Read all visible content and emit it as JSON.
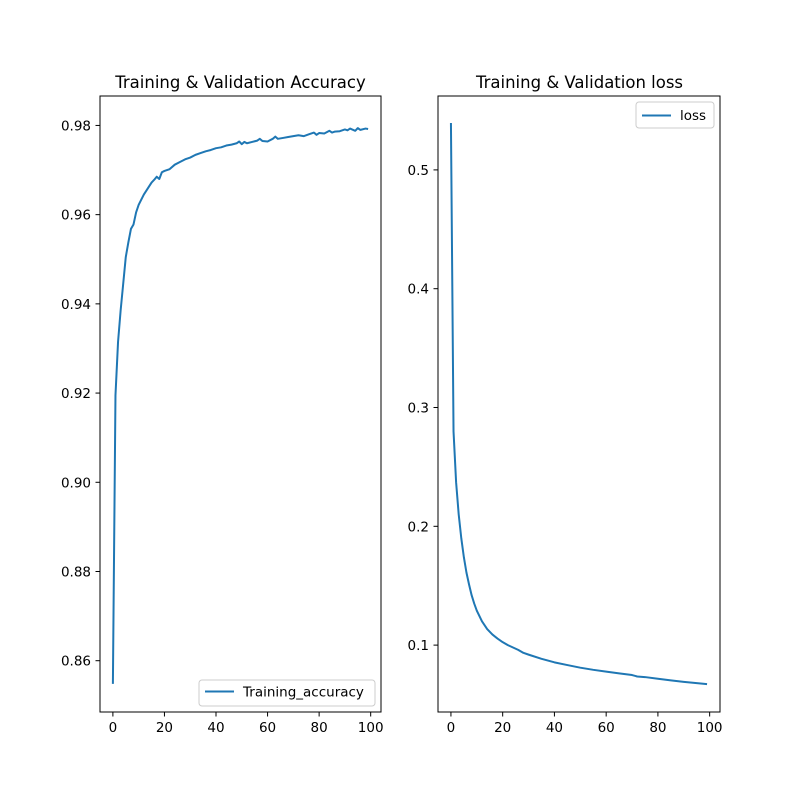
{
  "chart_data": [
    {
      "type": "line",
      "title": "Training & Validation Accuracy",
      "xlabel": "",
      "ylabel": "",
      "xlim": [
        -5,
        104
      ],
      "ylim": [
        0.8485,
        0.9866
      ],
      "xticks": [
        0,
        20,
        40,
        60,
        80,
        100
      ],
      "yticks": [
        0.86,
        0.88,
        0.9,
        0.92,
        0.94,
        0.96,
        0.98
      ],
      "ytick_labels": [
        "0.86",
        "0.88",
        "0.90",
        "0.92",
        "0.94",
        "0.96",
        "0.98"
      ],
      "grid": false,
      "legend_position": "lower-right",
      "color": "#1f77b4",
      "series": [
        {
          "name": "Training_accuracy",
          "x": [
            0,
            1,
            2,
            3,
            4,
            5,
            6,
            7,
            8,
            9,
            10,
            12,
            14,
            15,
            16,
            17,
            18,
            19,
            20,
            22,
            24,
            26,
            28,
            30,
            32,
            34,
            36,
            38,
            40,
            42,
            44,
            46,
            48,
            49,
            50,
            51,
            52,
            54,
            56,
            57,
            58,
            60,
            62,
            63,
            64,
            66,
            68,
            70,
            72,
            74,
            76,
            78,
            79,
            80,
            82,
            84,
            85,
            86,
            88,
            90,
            91,
            92,
            94,
            95,
            96,
            98,
            99
          ],
          "y": [
            0.8548,
            0.9195,
            0.9315,
            0.9385,
            0.9445,
            0.9505,
            0.9538,
            0.9568,
            0.9578,
            0.9605,
            0.9622,
            0.9645,
            0.9663,
            0.9672,
            0.9678,
            0.9685,
            0.968,
            0.9695,
            0.9698,
            0.9702,
            0.9712,
            0.9718,
            0.9724,
            0.9728,
            0.9734,
            0.9738,
            0.9742,
            0.9745,
            0.9749,
            0.9751,
            0.9755,
            0.9757,
            0.976,
            0.9764,
            0.9758,
            0.9763,
            0.976,
            0.9763,
            0.9766,
            0.977,
            0.9765,
            0.9764,
            0.977,
            0.9775,
            0.977,
            0.9772,
            0.9774,
            0.9776,
            0.9778,
            0.9776,
            0.978,
            0.9784,
            0.9779,
            0.9783,
            0.9782,
            0.9788,
            0.9784,
            0.9786,
            0.9787,
            0.9791,
            0.9789,
            0.9793,
            0.9788,
            0.9794,
            0.979,
            0.9793,
            0.9792
          ]
        }
      ]
    },
    {
      "type": "line",
      "title": "Training & Validation loss",
      "xlabel": "",
      "ylabel": "",
      "xlim": [
        -5,
        104
      ],
      "ylim": [
        0.0437,
        0.5622
      ],
      "xticks": [
        0,
        20,
        40,
        60,
        80,
        100
      ],
      "yticks": [
        0.1,
        0.2,
        0.3,
        0.4,
        0.5
      ],
      "ytick_labels": [
        "0.1",
        "0.2",
        "0.3",
        "0.4",
        "0.5"
      ],
      "grid": false,
      "legend_position": "upper-right",
      "color": "#1f77b4",
      "series": [
        {
          "name": "loss",
          "x": [
            0,
            1,
            2,
            3,
            4,
            5,
            6,
            7,
            8,
            9,
            10,
            12,
            14,
            16,
            18,
            20,
            22,
            24,
            26,
            28,
            30,
            35,
            40,
            45,
            50,
            55,
            60,
            65,
            70,
            72,
            75,
            80,
            85,
            90,
            95,
            99
          ],
          "y": [
            0.5395,
            0.28,
            0.237,
            0.21,
            0.19,
            0.174,
            0.161,
            0.151,
            0.142,
            0.135,
            0.129,
            0.12,
            0.1135,
            0.109,
            0.1055,
            0.1025,
            0.1,
            0.098,
            0.096,
            0.0935,
            0.092,
            0.0885,
            0.0855,
            0.0832,
            0.081,
            0.0792,
            0.0777,
            0.0762,
            0.0748,
            0.0736,
            0.0731,
            0.0717,
            0.0703,
            0.0691,
            0.068,
            0.0672
          ]
        }
      ]
    }
  ]
}
